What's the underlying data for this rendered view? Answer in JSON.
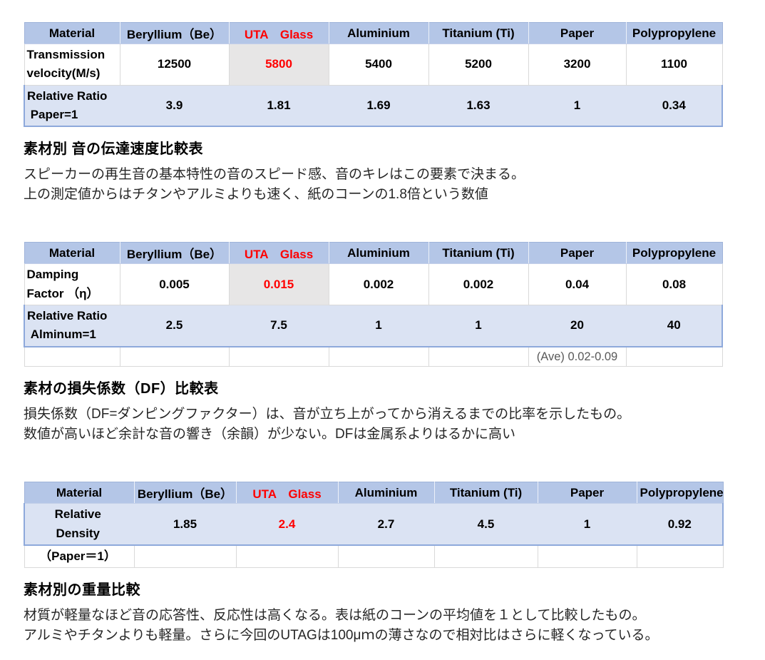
{
  "colors": {
    "header_bg": "#b4c6e7",
    "ratio_bg": "#dbe3f3",
    "highlight_bg": "#e7e6e6",
    "accent_red": "#ff0000",
    "border_blue": "#8ea9db",
    "border_light": "#d9d9d9",
    "note_text": "#595959"
  },
  "tables": [
    {
      "name": "transmission-velocity-table",
      "red_col": 2,
      "headers": [
        "Material",
        "Beryllium（Be）",
        "UTA　Glass",
        "Aluminium",
        "Titanium (Ti)",
        "Paper",
        "Polypropylene"
      ],
      "rows": [
        {
          "name": "transmission-velocity-row",
          "style": "data",
          "red_col": 2,
          "shade_col": 2,
          "label": "Transmission\nvelocity(M/s)",
          "values": [
            "12500",
            "5800",
            "5400",
            "5200",
            "3200",
            "1100"
          ]
        },
        {
          "name": "relative-ratio-paper-row",
          "style": "ratio",
          "red_col": -1,
          "shade_col": -1,
          "label": "Relative Ratio\n Paper=1",
          "values": [
            "3.9",
            "1.81",
            "1.69",
            "1.63",
            "1",
            "0.34"
          ]
        }
      ]
    },
    {
      "name": "damping-factor-table",
      "red_col": 2,
      "headers": [
        "Material",
        "Beryllium（Be）",
        "UTA　Glass",
        "Aluminium",
        "Titanium (Ti)",
        "Paper",
        "Polypropylene"
      ],
      "rows": [
        {
          "name": "damping-factor-row",
          "style": "data",
          "red_col": 2,
          "shade_col": 2,
          "label": "Damping\nFactor （η）",
          "values": [
            "0.005",
            "0.015",
            "0.002",
            "0.002",
            "0.04",
            "0.08"
          ]
        },
        {
          "name": "relative-ratio-alminum-row",
          "style": "ratio",
          "red_col": -1,
          "shade_col": -1,
          "label": "Relative Ratio\n Alminum=1",
          "values": [
            "2.5",
            "7.5",
            "1",
            "1",
            "20",
            "40"
          ]
        },
        {
          "name": "average-note-row",
          "style": "note",
          "red_col": -1,
          "shade_col": -1,
          "label": "",
          "values": [
            "",
            "",
            "",
            "",
            "(Ave) 0.02-0.09",
            ""
          ]
        }
      ]
    },
    {
      "name": "relative-density-table",
      "red_col": 2,
      "headers": [
        "Material",
        "Beryllium（Be）",
        "UTA　Glass",
        "Aluminium",
        "Titanium (Ti)",
        "Paper",
        "Polypropylene"
      ],
      "rows": [
        {
          "name": "relative-density-row",
          "style": "ratio",
          "red_col": 2,
          "shade_col": -1,
          "label": "Relative\nDensity",
          "values": [
            "1.85",
            "2.4",
            "2.7",
            "4.5",
            "1",
            "0.92"
          ]
        },
        {
          "name": "paper-basis-row",
          "style": "note",
          "red_col": -1,
          "shade_col": -1,
          "label": "（Paper＝1）",
          "values": [
            "",
            "",
            "",
            "",
            "",
            ""
          ]
        }
      ]
    }
  ],
  "sections": [
    {
      "title": "素材別 音の伝達速度比較表",
      "lines": [
        "スピーカーの再生音の基本特性の音のスピード感、音のキレはこの要素で決まる。",
        "上の測定値からはチタンやアルミよりも速く、紙のコーンの1.8倍という数値"
      ]
    },
    {
      "title": "素材の損失係数（DF）比較表",
      "lines": [
        "損失係数（DF=ダンピングファクター）は、音が立ち上がってから消えるまでの比率を示したもの。",
        "数値が高いほど余計な音の響き（余韻）が少ない。DFは金属系よりはるかに高い"
      ]
    },
    {
      "title": "素材別の重量比較",
      "lines": [
        "材質が軽量なほど音の応答性、反応性は高くなる。表は紙のコーンの平均値を１として比較したもの。",
        "アルミやチタンよりも軽量。さらに今回のUTAGは100μｍの薄さなので相対比はさらに軽くなっている。"
      ]
    }
  ]
}
